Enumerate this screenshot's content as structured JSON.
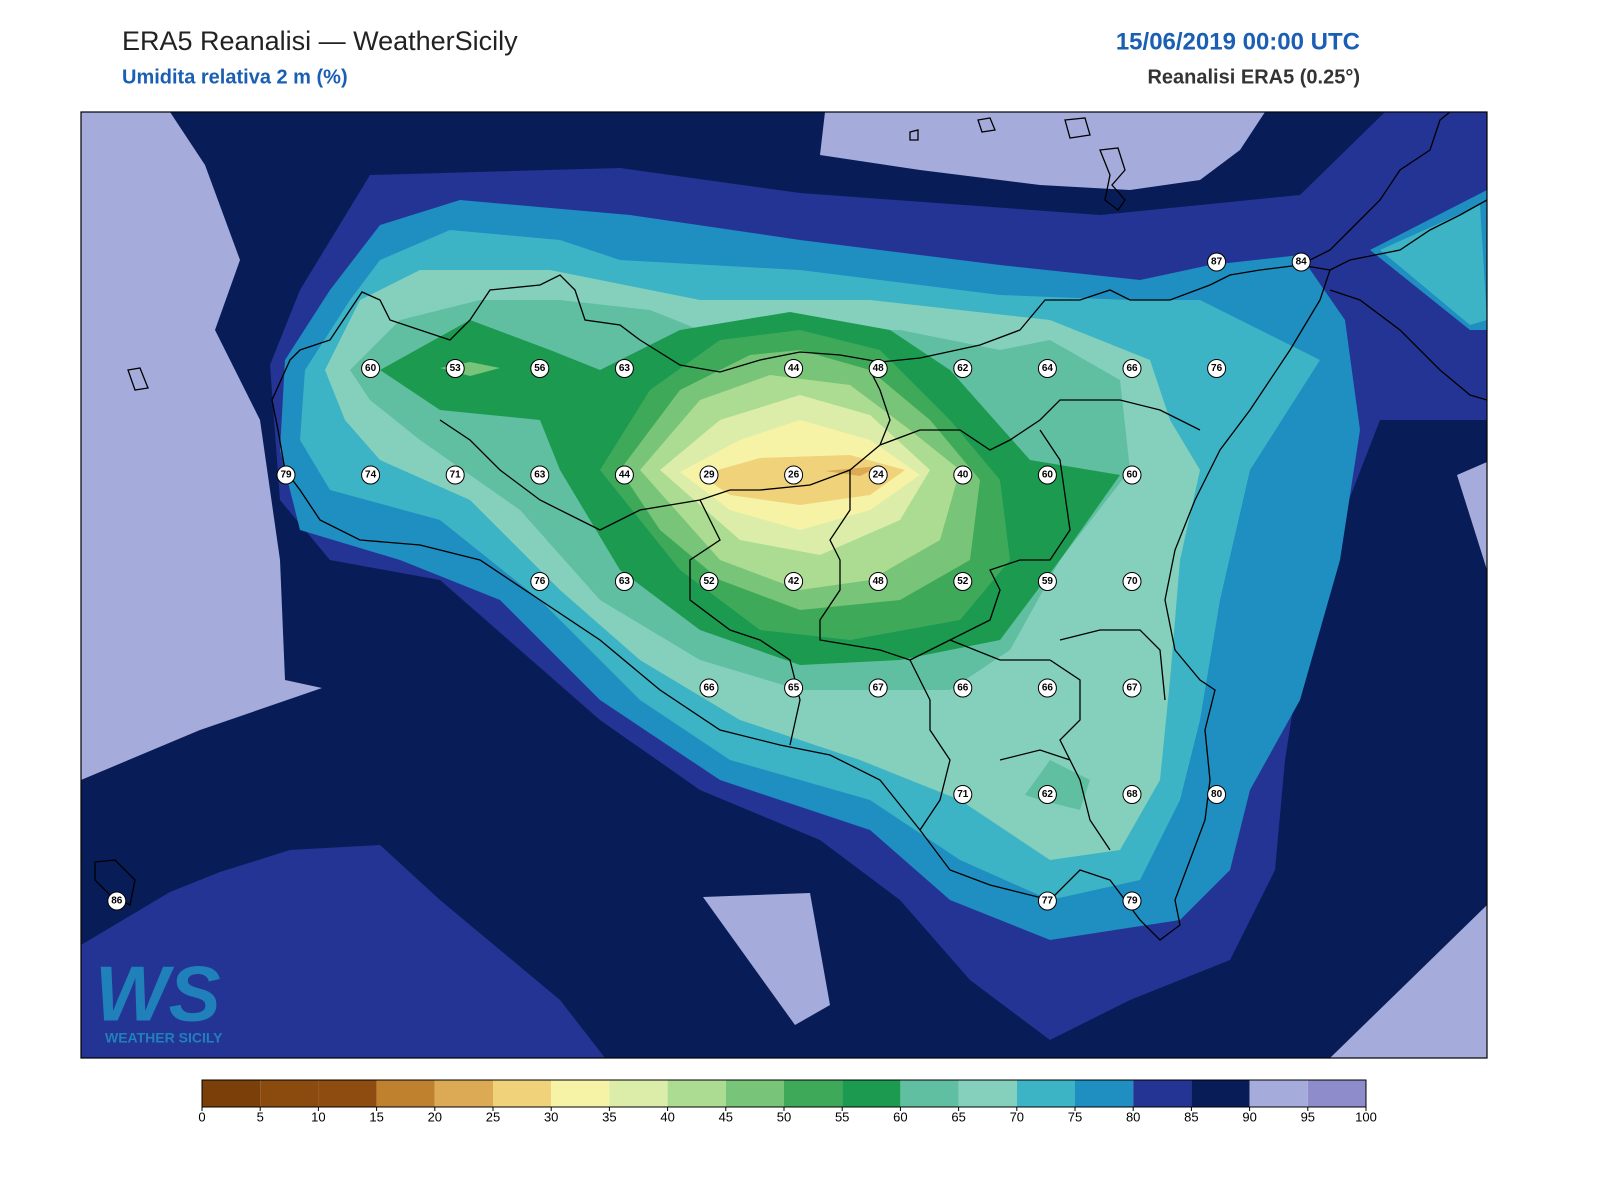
{
  "header": {
    "title": "ERA5 Reanalisi — WeatherSicily",
    "subtitle": "Umidita relativa 2 m (%)",
    "date": "15/06/2019 00:00 UTC",
    "source": "Reanalisi ERA5 (0.25°)"
  },
  "map": {
    "stations": [
      87,
      84,
      60,
      53,
      56,
      63,
      44,
      48,
      62,
      64,
      66,
      76,
      79,
      74,
      71,
      63,
      44,
      29,
      26,
      24,
      40,
      60,
      60,
      76,
      63,
      52,
      42,
      48,
      52,
      59,
      70,
      66,
      65,
      67,
      66,
      66,
      67,
      71,
      62,
      68,
      80,
      86,
      77,
      79
    ]
  },
  "colorbar": {
    "ticks": [
      0,
      5,
      10,
      15,
      20,
      25,
      30,
      35,
      40,
      45,
      50,
      55,
      60,
      65,
      70,
      75,
      80,
      85,
      90,
      95,
      100
    ],
    "colors": [
      "#7b3f09",
      "#8b4b0f",
      "#8e4c10",
      "#c0812f",
      "#dcaa55",
      "#f0d27a",
      "#f7f3a6",
      "#dcedaa",
      "#acdc91",
      "#78c479",
      "#3fa95a",
      "#1b9a50",
      "#5fbfa0",
      "#84d0bc",
      "#3db4c6",
      "#1f8ec1",
      "#243494",
      "#081d58",
      "#a5acdb",
      "#8f8ccb"
    ]
  },
  "logo": {
    "mark": "WS",
    "name": "WEATHER SICILY"
  }
}
